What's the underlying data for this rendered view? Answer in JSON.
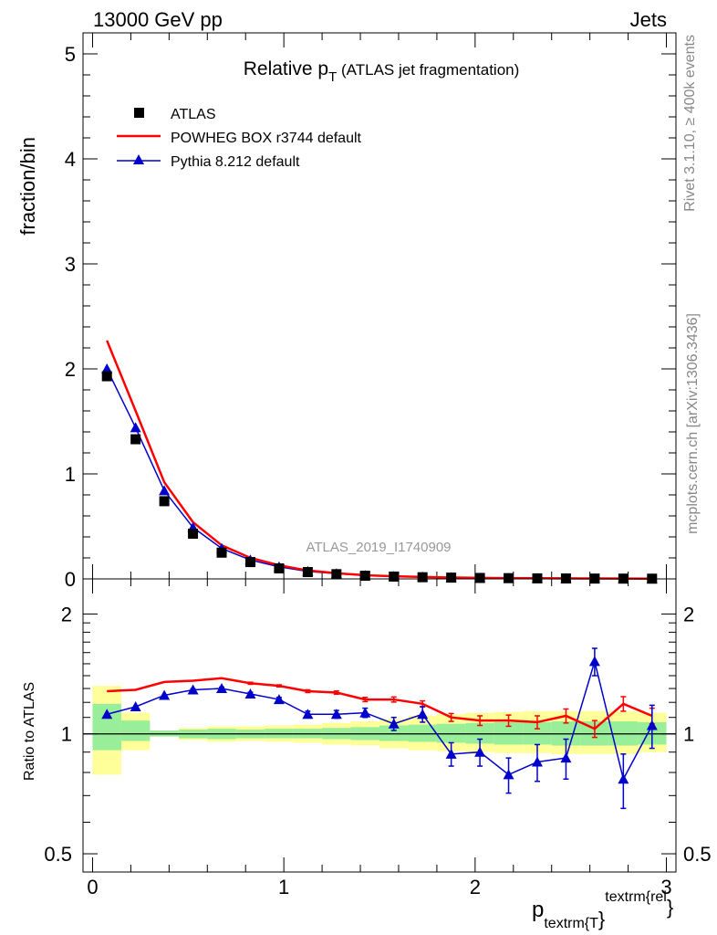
{
  "header": {
    "energy": "13000 GeV pp",
    "category": "Jets",
    "side_top": "Rivet 3.1.10, ≥ 400k events",
    "side_bottom": "mcplots.cern.ch [arXiv:1306.3436]",
    "watermark": "ATLAS_2019_I1740909"
  },
  "colors": {
    "data": "#000000",
    "powheg": "#ff0000",
    "pythia": "#0000cc",
    "band_inner": "#99ee99",
    "band_outer": "#ffff99"
  },
  "chart_data": [
    {
      "type": "line",
      "title_main": "Relative p",
      "title_sub": "T",
      "title_rest": " (ATLAS jet fragmentation)",
      "ylabel": "fraction/bin",
      "xlim": [
        -0.05,
        3.05
      ],
      "ylim": [
        0,
        5.2
      ],
      "yticks": [
        0,
        1,
        2,
        3,
        4,
        5
      ],
      "x": [
        0.075,
        0.225,
        0.375,
        0.525,
        0.675,
        0.825,
        0.975,
        1.125,
        1.275,
        1.425,
        1.575,
        1.725,
        1.875,
        2.025,
        2.175,
        2.325,
        2.475,
        2.625,
        2.775,
        2.925
      ],
      "series": [
        {
          "name": "ATLAS",
          "style": "markers-square",
          "values": [
            1.93,
            1.33,
            0.74,
            0.43,
            0.25,
            0.16,
            0.1,
            0.065,
            0.045,
            0.03,
            0.022,
            0.016,
            0.012,
            0.009,
            0.007,
            0.005,
            0.004,
            0.003,
            0.0025,
            0.002
          ]
        },
        {
          "name": "POWHEG BOX r3744 default",
          "style": "line",
          "values": [
            2.27,
            1.6,
            0.92,
            0.54,
            0.32,
            0.2,
            0.13,
            0.08,
            0.054,
            0.035,
            0.025,
            0.018,
            0.013,
            0.01,
            0.008,
            0.006,
            0.005,
            0.004,
            0.003,
            0.002
          ]
        },
        {
          "name": "Pythia 8.212 default",
          "style": "line-triangle",
          "values": [
            2.0,
            1.44,
            0.84,
            0.49,
            0.29,
            0.18,
            0.115,
            0.072,
            0.05,
            0.033,
            0.024,
            0.017,
            0.012,
            0.009,
            0.007,
            0.005,
            0.004,
            0.003,
            0.002,
            0.002
          ]
        }
      ]
    },
    {
      "type": "line",
      "ylabel": "Ratio to ATLAS",
      "xlabel_main": "p",
      "xlabel_sub": "textrm{T",
      "xlabel_close": "}",
      "xlabel_sup": "textrm{rel",
      "xlabel_close2": "}",
      "xlim": [
        -0.05,
        3.05
      ],
      "ylim": [
        0.45,
        2.45
      ],
      "ytick_labels": [
        "0.5",
        "1",
        "2"
      ],
      "yticks": [
        0.5,
        1,
        2
      ],
      "xticks": [
        0,
        1,
        2,
        3
      ],
      "xtick_labels": [
        "0",
        "1",
        "2",
        "3"
      ],
      "bin_edges": [
        0,
        0.15,
        0.3,
        0.45,
        0.6,
        0.75,
        0.9,
        1.05,
        1.2,
        1.35,
        1.5,
        1.65,
        1.8,
        1.95,
        2.1,
        2.25,
        2.4,
        2.55,
        2.7,
        2.85,
        3.0
      ],
      "band_inner": [
        [
          0.91,
          1.19
        ],
        [
          0.96,
          1.08
        ],
        [
          0.985,
          1.02
        ],
        [
          0.975,
          1.025
        ],
        [
          0.97,
          1.03
        ],
        [
          0.975,
          1.025
        ],
        [
          0.975,
          1.03
        ],
        [
          0.975,
          1.03
        ],
        [
          0.97,
          1.035
        ],
        [
          0.965,
          1.04
        ],
        [
          0.96,
          1.05
        ],
        [
          0.955,
          1.055
        ],
        [
          0.95,
          1.06
        ],
        [
          0.945,
          1.065
        ],
        [
          0.94,
          1.07
        ],
        [
          0.94,
          1.07
        ],
        [
          0.935,
          1.075
        ],
        [
          0.935,
          1.075
        ],
        [
          0.935,
          1.075
        ],
        [
          0.94,
          1.07
        ]
      ],
      "band_outer": [
        [
          0.79,
          1.32
        ],
        [
          0.91,
          1.13
        ],
        [
          0.985,
          1.02
        ],
        [
          0.965,
          1.035
        ],
        [
          0.955,
          1.045
        ],
        [
          0.96,
          1.045
        ],
        [
          0.955,
          1.05
        ],
        [
          0.95,
          1.055
        ],
        [
          0.94,
          1.065
        ],
        [
          0.935,
          1.075
        ],
        [
          0.92,
          1.09
        ],
        [
          0.91,
          1.11
        ],
        [
          0.905,
          1.12
        ],
        [
          0.9,
          1.13
        ],
        [
          0.895,
          1.135
        ],
        [
          0.895,
          1.14
        ],
        [
          0.89,
          1.14
        ],
        [
          0.89,
          1.14
        ],
        [
          0.89,
          1.14
        ],
        [
          0.9,
          1.13
        ]
      ],
      "series": [
        {
          "name": "POWHEG BOX r3744 default",
          "values": [
            1.28,
            1.29,
            1.35,
            1.36,
            1.38,
            1.34,
            1.32,
            1.28,
            1.27,
            1.22,
            1.22,
            1.19,
            1.1,
            1.08,
            1.08,
            1.07,
            1.11,
            1.03,
            1.19,
            1.11
          ],
          "errors": [
            0.005,
            0.005,
            0.005,
            0.005,
            0.005,
            0.008,
            0.008,
            0.01,
            0.012,
            0.015,
            0.018,
            0.02,
            0.025,
            0.03,
            0.035,
            0.04,
            0.045,
            0.05,
            0.05,
            0.05
          ]
        },
        {
          "name": "Pythia 8.212 default",
          "values": [
            1.12,
            1.17,
            1.25,
            1.29,
            1.3,
            1.26,
            1.22,
            1.12,
            1.12,
            1.13,
            1.06,
            1.12,
            0.89,
            0.9,
            0.79,
            0.85,
            0.87,
            1.52,
            0.77,
            1.05
          ],
          "errors": [
            0.005,
            0.005,
            0.005,
            0.008,
            0.01,
            0.012,
            0.015,
            0.02,
            0.025,
            0.03,
            0.04,
            0.05,
            0.06,
            0.07,
            0.08,
            0.09,
            0.1,
            0.12,
            0.12,
            0.13
          ]
        }
      ]
    }
  ]
}
